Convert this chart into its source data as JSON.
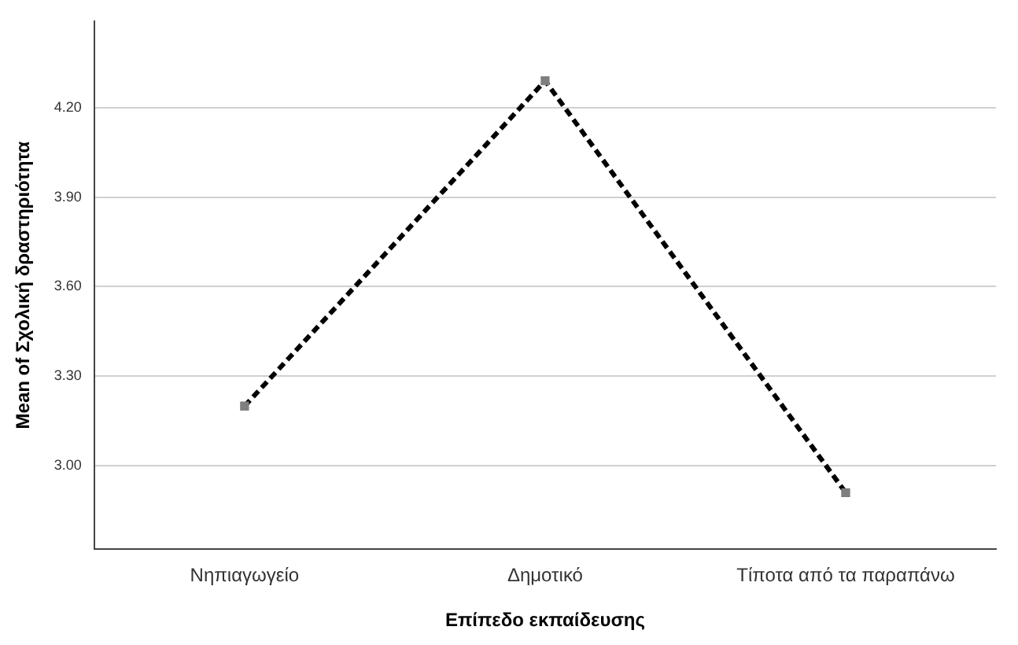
{
  "chart_data": {
    "type": "line",
    "xlabel": "Επίπεδο εκπαίδευσης",
    "ylabel": "Mean of Σχολική δραστηριότητα",
    "categories": [
      "Νηπιαγωγείο",
      "Δημοτικό",
      "Τίποτα από τα παραπάνω"
    ],
    "series": [
      {
        "color": "#000000",
        "values": [
          3.2,
          4.29,
          2.91
        ]
      }
    ],
    "ylim": [
      2.72,
      4.49
    ],
    "yticks": [
      {
        "value": 3.0,
        "label": "3.00"
      },
      {
        "value": 3.3,
        "label": "3.30"
      },
      {
        "value": 3.6,
        "label": "3.60"
      },
      {
        "value": 3.9,
        "label": "3.90"
      },
      {
        "value": 4.2,
        "label": "4.20"
      }
    ],
    "grid": "y",
    "legend": false,
    "marker": "square",
    "line_style": "dashed"
  }
}
